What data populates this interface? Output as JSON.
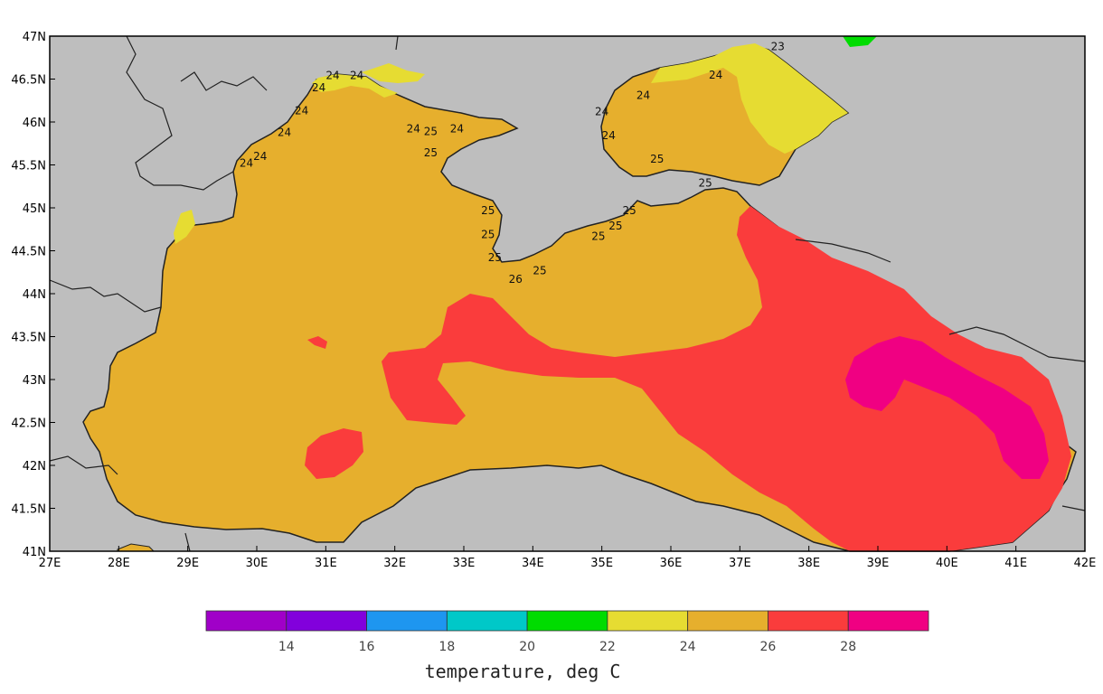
{
  "map": {
    "lon_range": [
      27,
      42
    ],
    "lat_range": [
      41,
      47
    ],
    "lon_ticks": [
      "27E",
      "28E",
      "29E",
      "30E",
      "31E",
      "32E",
      "33E",
      "34E",
      "35E",
      "36E",
      "37E",
      "38E",
      "39E",
      "40E",
      "41E",
      "42E"
    ],
    "lat_ticks": [
      "47N",
      "46.5N",
      "46N",
      "45.5N",
      "45N",
      "44.5N",
      "44N",
      "43.5N",
      "43N",
      "42.5N",
      "42N",
      "41.5N",
      "41N"
    ],
    "contour_labels": [
      {
        "text": "23",
        "lon": 37.55,
        "lat": 46.88
      },
      {
        "text": "24",
        "lon": 36.65,
        "lat": 46.55
      },
      {
        "text": "24",
        "lon": 31.1,
        "lat": 46.54
      },
      {
        "text": "24",
        "lon": 31.45,
        "lat": 46.54
      },
      {
        "text": "24",
        "lon": 30.9,
        "lat": 46.4
      },
      {
        "text": "24",
        "lon": 30.65,
        "lat": 46.13
      },
      {
        "text": "24",
        "lon": 30.4,
        "lat": 45.88
      },
      {
        "text": "24",
        "lon": 30.05,
        "lat": 45.6
      },
      {
        "text": "24",
        "lon": 29.85,
        "lat": 45.52
      },
      {
        "text": "24",
        "lon": 32.27,
        "lat": 45.92
      },
      {
        "text": "25",
        "lon": 32.52,
        "lat": 45.89
      },
      {
        "text": "24",
        "lon": 32.9,
        "lat": 45.92
      },
      {
        "text": "25",
        "lon": 32.52,
        "lat": 45.64
      },
      {
        "text": "24",
        "lon": 35.6,
        "lat": 46.31
      },
      {
        "text": "24",
        "lon": 35.0,
        "lat": 46.12
      },
      {
        "text": "24",
        "lon": 35.1,
        "lat": 45.84
      },
      {
        "text": "25",
        "lon": 35.8,
        "lat": 45.57
      },
      {
        "text": "25",
        "lon": 36.5,
        "lat": 45.29
      },
      {
        "text": "25",
        "lon": 35.4,
        "lat": 44.97
      },
      {
        "text": "25",
        "lon": 35.2,
        "lat": 44.79
      },
      {
        "text": "25",
        "lon": 34.95,
        "lat": 44.67
      },
      {
        "text": "25",
        "lon": 33.35,
        "lat": 44.97
      },
      {
        "text": "25",
        "lon": 33.35,
        "lat": 44.69
      },
      {
        "text": "25",
        "lon": 33.45,
        "lat": 44.42
      },
      {
        "text": "25",
        "lon": 34.1,
        "lat": 44.27
      },
      {
        "text": "26",
        "lon": 33.75,
        "lat": 44.17
      }
    ]
  },
  "colorbar": {
    "colors": [
      "#a000c8",
      "#8200dc",
      "#1e96f0",
      "#00c8c8",
      "#00dc00",
      "#e6dc32",
      "#e6af2d",
      "#fa3c3c",
      "#f00082"
    ],
    "tick_labels": [
      "14",
      "16",
      "18",
      "20",
      "22",
      "24",
      "26",
      "28"
    ],
    "title": "temperature, deg C"
  },
  "colors": {
    "land": "#bebebe",
    "water_24_26": "#e6af2d",
    "water_22_24": "#e6dc32",
    "water_26_28": "#fa3c3c",
    "water_28_30": "#f00082",
    "water_20_22": "#00dc00"
  }
}
